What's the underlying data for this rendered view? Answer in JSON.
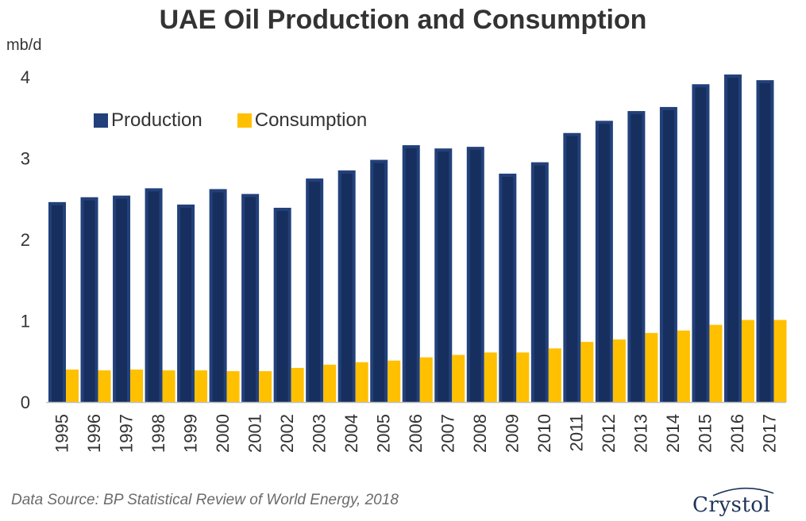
{
  "title": "UAE Oil Production and Consumption",
  "unit_label": "mb/d",
  "source": "Data Source: BP Statistical Review of World Energy, 2018",
  "logo_text": "Crystol",
  "colors": {
    "production": "#22407a",
    "production_dark": "#0f2147",
    "consumption": "#ffc000",
    "axis": "#bfbfbf"
  },
  "legend": {
    "production": "Production",
    "consumption": "Consumption"
  },
  "chart_data": {
    "type": "bar",
    "categories": [
      "1995",
      "1996",
      "1997",
      "1998",
      "1999",
      "2000",
      "2001",
      "2002",
      "2003",
      "2004",
      "2005",
      "2006",
      "2007",
      "2008",
      "2009",
      "2010",
      "2011",
      "2012",
      "2013",
      "2014",
      "2015",
      "2016",
      "2017"
    ],
    "series": [
      {
        "name": "Production",
        "values": [
          2.46,
          2.52,
          2.54,
          2.63,
          2.43,
          2.62,
          2.56,
          2.39,
          2.75,
          2.85,
          2.98,
          3.16,
          3.12,
          3.14,
          2.81,
          2.95,
          3.31,
          3.46,
          3.58,
          3.63,
          3.91,
          4.03,
          3.96
        ]
      },
      {
        "name": "Consumption",
        "values": [
          0.4,
          0.39,
          0.4,
          0.39,
          0.39,
          0.38,
          0.38,
          0.42,
          0.46,
          0.49,
          0.51,
          0.55,
          0.58,
          0.61,
          0.61,
          0.66,
          0.74,
          0.77,
          0.85,
          0.88,
          0.95,
          1.01,
          1.01
        ]
      }
    ],
    "yticks": [
      0,
      1,
      2,
      3,
      4
    ],
    "ylim": [
      0,
      4.05
    ],
    "xlabel": "",
    "ylabel": "mb/d",
    "legend_position": "top-left",
    "grid": false
  }
}
